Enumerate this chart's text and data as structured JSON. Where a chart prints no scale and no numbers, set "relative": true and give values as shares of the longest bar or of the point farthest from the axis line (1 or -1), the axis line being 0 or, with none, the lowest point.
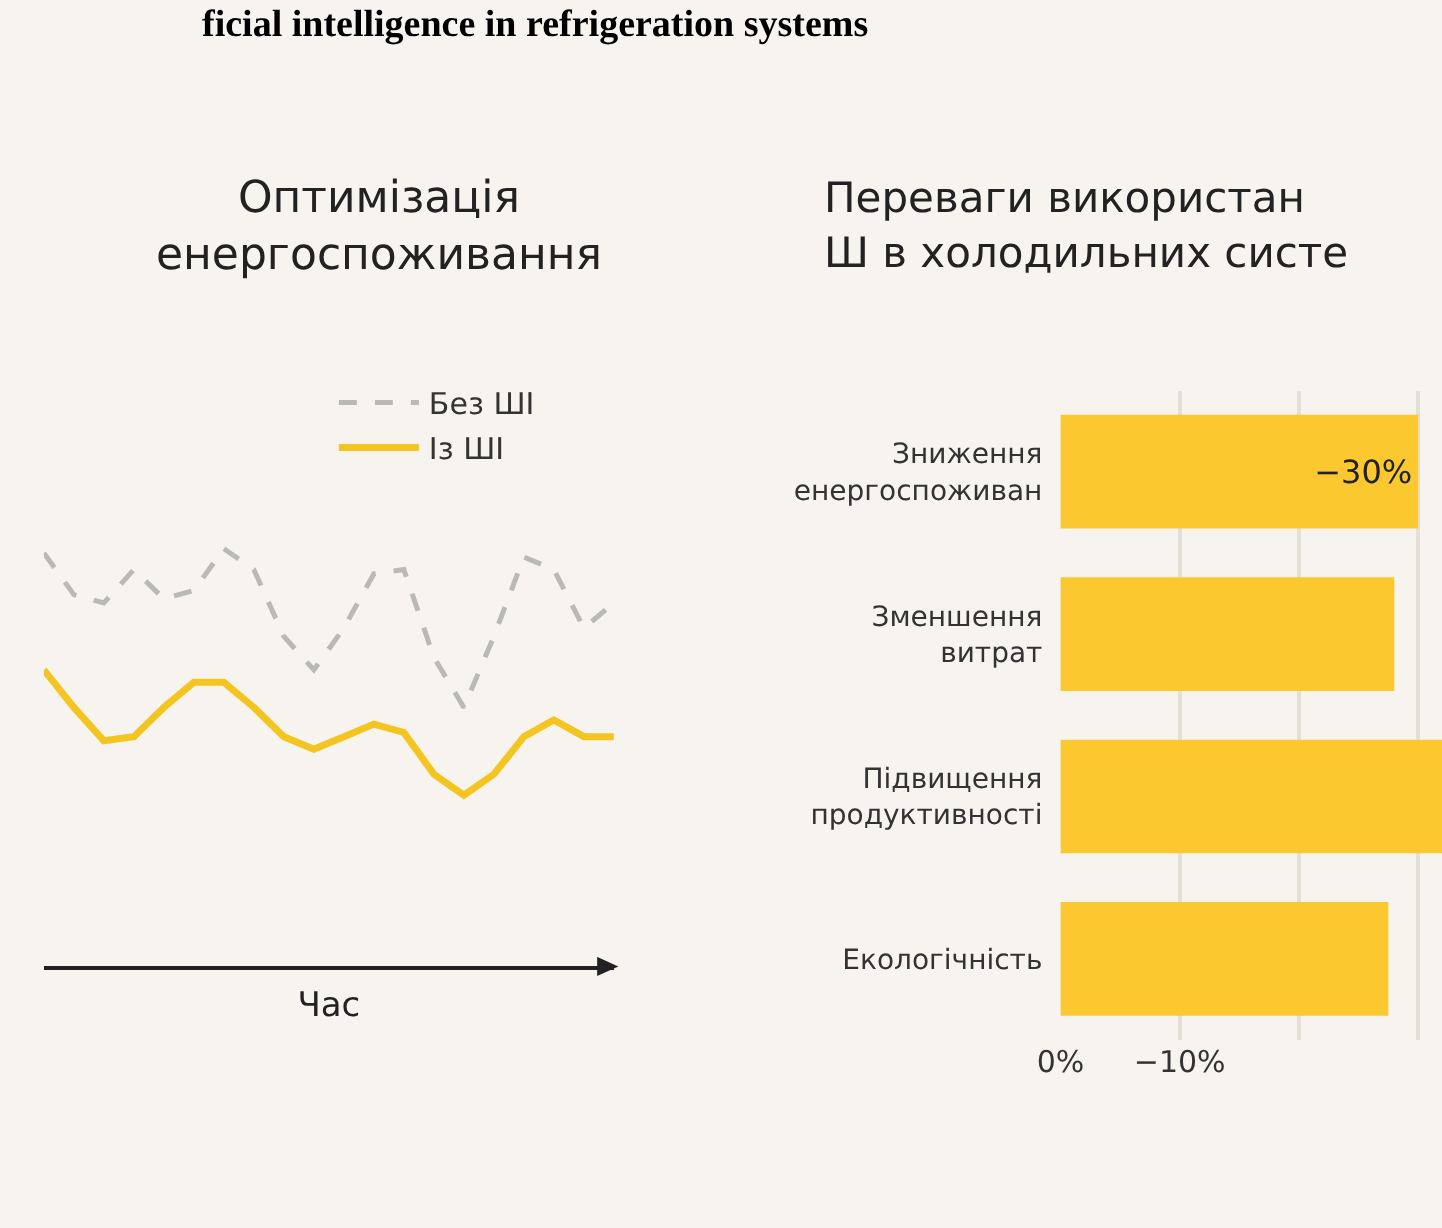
{
  "chart_data": [
    {
      "type": "line",
      "title": "Оптимізація\nенергоспоживання",
      "xlabel": "Час",
      "relative": true,
      "tick_labels": false,
      "legend": "top right",
      "categories": [
        null,
        null,
        null,
        null,
        null,
        null,
        null,
        null,
        null,
        null,
        null,
        null,
        null,
        null,
        null,
        null,
        null,
        null,
        null,
        null
      ],
      "annotations": [
        "ficial intelligence in refrigeration systems"
      ],
      "series": [
        {
          "name": "Без ШІ",
          "color": "#b9b9b6",
          "line_style": "dashed",
          "values": [
            0.99,
            0.89,
            0.87,
            0.95,
            0.88,
            0.9,
            1,
            0.95,
            0.79,
            0.71,
            0.81,
            0.94,
            0.95,
            0.74,
            0.62,
            0.79,
            0.98,
            0.95,
            0.81,
            0.87
          ]
        },
        {
          "name": "Із ШІ",
          "color": "#f4c520",
          "line_style": "solid",
          "values": [
            0.71,
            0.62,
            0.54,
            0.55,
            0.62,
            0.68,
            0.68,
            0.62,
            0.55,
            0.52,
            0.55,
            0.58,
            0.56,
            0.46,
            0.41,
            0.46,
            0.55,
            0.59,
            0.55,
            0.55
          ]
        }
      ]
    },
    {
      "type": "bar",
      "title": "Переваги використан\nШ в холодильних систе",
      "orientation": "horizontal",
      "grid": "x",
      "categories": [
        "Зниження\nенергоспоживан",
        "Зменшення\nвитрат",
        "Підвищення\nпродуктивності",
        "Екологічність"
      ],
      "values": [
        -30,
        -28,
        -32,
        -27.5
      ],
      "color": "#fbc92f",
      "value_labels": [
        "−30%",
        null,
        null,
        null
      ],
      "xlim": [
        0,
        -32
      ],
      "xticks": [
        {
          "value": 0,
          "label": "0%"
        },
        {
          "value": -10,
          "label": "−10%"
        },
        {
          "value": -20,
          "label": null
        },
        {
          "value": -30,
          "label": null
        }
      ]
    }
  ]
}
